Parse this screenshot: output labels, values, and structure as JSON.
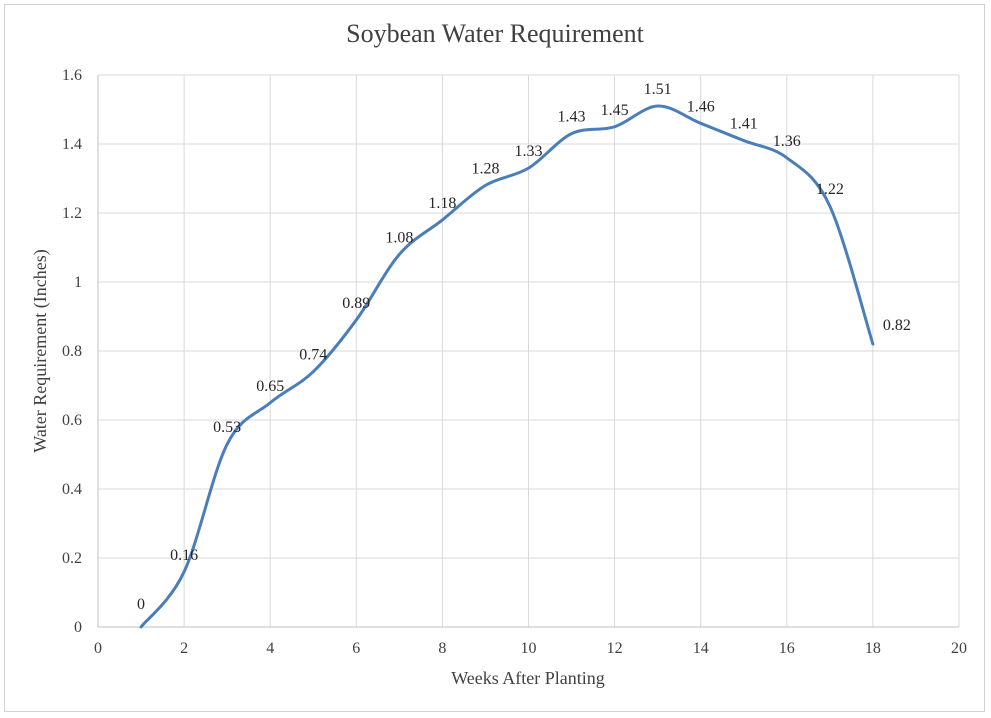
{
  "chart_data": {
    "type": "line",
    "title": "Soybean Water Requirement",
    "xlabel": "Weeks After Planting",
    "ylabel": "Water Requirement (Inches)",
    "xlim": [
      0,
      20
    ],
    "ylim": [
      0,
      1.6
    ],
    "x_ticks": [
      "0",
      "2",
      "4",
      "6",
      "8",
      "10",
      "12",
      "14",
      "16",
      "18",
      "20"
    ],
    "y_ticks": [
      "0",
      "0.2",
      "0.4",
      "0.6",
      "0.8",
      "1",
      "1.2",
      "1.4",
      "1.6"
    ],
    "grid": true,
    "smooth": true,
    "series": [
      {
        "color": "#4a7ebb",
        "x": [
          1,
          2,
          3,
          4,
          5,
          6,
          7,
          8,
          9,
          10,
          11,
          12,
          13,
          14,
          15,
          16,
          17,
          18
        ],
        "values": [
          0,
          0.16,
          0.53,
          0.65,
          0.74,
          0.89,
          1.08,
          1.18,
          1.28,
          1.33,
          1.43,
          1.45,
          1.51,
          1.46,
          1.41,
          1.36,
          1.22,
          0.82
        ],
        "labels": [
          "0",
          "0.16",
          "0.53",
          "0.65",
          "0.74",
          "0.89",
          "1.08",
          "1.18",
          "1.28",
          "1.33",
          "1.43",
          "1.45",
          "1.51",
          "1.46",
          "1.41",
          "1.36",
          "1.22",
          "0.82"
        ]
      }
    ]
  }
}
